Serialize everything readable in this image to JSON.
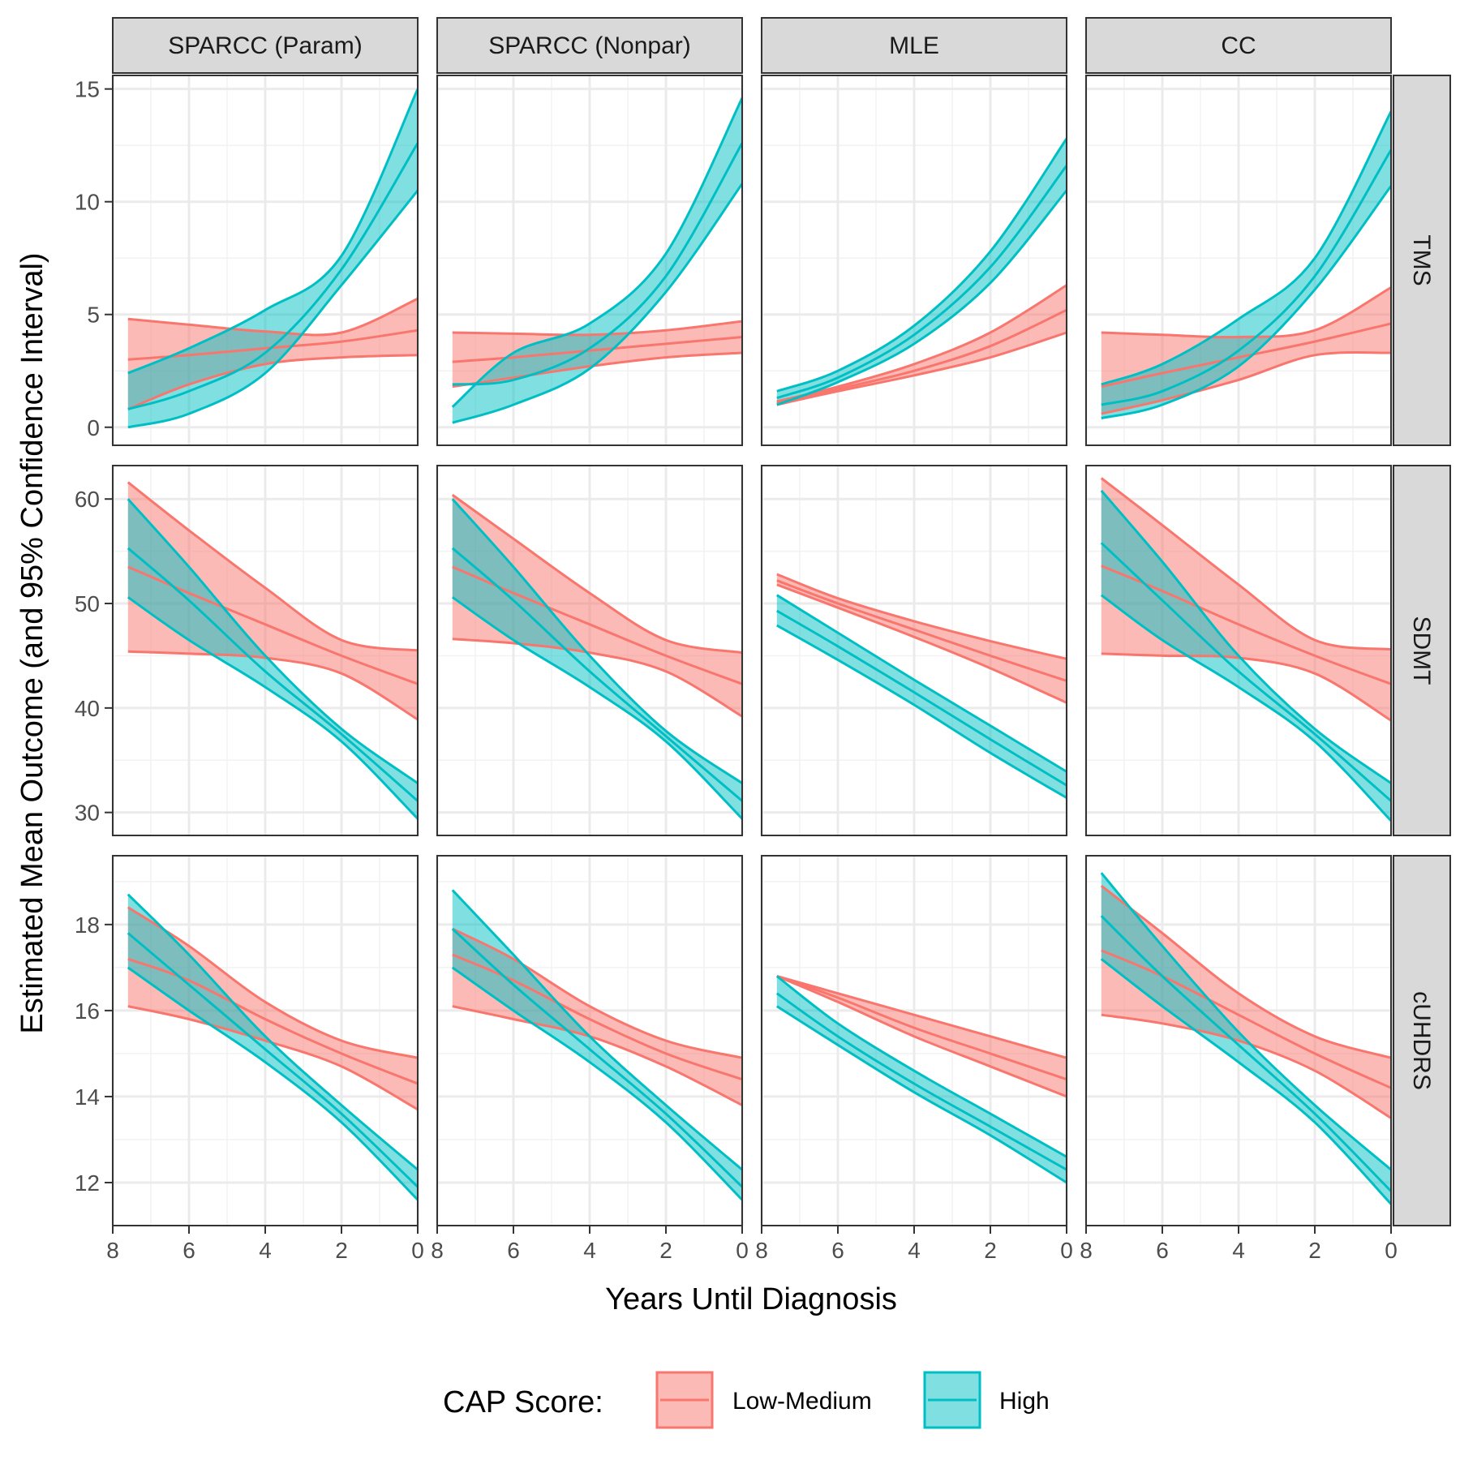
{
  "chart_data": {
    "type": "line",
    "xlabel": "Years Until Diagnosis",
    "ylabel": "Estimated Mean Outcome (and 95% Confidence Interval)",
    "x_reversed": true,
    "x_range": [
      8,
      0
    ],
    "x_ticks": [
      8,
      6,
      4,
      2,
      0
    ],
    "x_tick_labels": [
      "8",
      "6",
      "4",
      "2",
      "0"
    ],
    "x_data": [
      7.6,
      6,
      4,
      2,
      0
    ],
    "columns": [
      "SPARCC (Param)",
      "SPARCC (Nonpar)",
      "MLE",
      "CC"
    ],
    "rows": [
      {
        "name": "TMS",
        "ylim": [
          -0.8,
          15.6
        ],
        "y_ticks": [
          0,
          5,
          10,
          15
        ],
        "y_tick_labels": [
          "0",
          "5",
          "10",
          "15"
        ]
      },
      {
        "name": "SDMT",
        "ylim": [
          27.8,
          63.2
        ],
        "y_ticks": [
          30,
          40,
          50,
          60
        ],
        "y_tick_labels": [
          "30",
          "40",
          "50",
          "60"
        ]
      },
      {
        "name": "cUHDRS",
        "ylim": [
          11.0,
          19.6
        ],
        "y_ticks": [
          12,
          14,
          16,
          18
        ],
        "y_tick_labels": [
          "12",
          "14",
          "16",
          "18"
        ]
      }
    ],
    "legend": {
      "title": "CAP Score:",
      "position": "bottom",
      "entries": [
        {
          "label": "Low-Medium",
          "color": "#F8766D"
        },
        {
          "label": "High",
          "color": "#00BFC4"
        }
      ]
    },
    "panels": [
      {
        "row": "TMS",
        "col": "SPARCC (Param)",
        "series": [
          {
            "name": "Low-Medium",
            "fit": [
              3.0,
              3.2,
              3.5,
              3.8,
              4.3
            ],
            "lower": [
              0.8,
              1.9,
              2.8,
              3.1,
              3.2
            ],
            "upper": [
              4.8,
              4.55,
              4.25,
              4.2,
              5.7
            ]
          },
          {
            "name": "High",
            "fit": [
              0.8,
              1.6,
              3.3,
              7.0,
              12.6
            ],
            "lower": [
              0.0,
              0.6,
              2.4,
              6.3,
              10.5
            ],
            "upper": [
              2.4,
              3.5,
              5.2,
              7.6,
              15.0
            ]
          }
        ]
      },
      {
        "row": "TMS",
        "col": "SPARCC (Nonpar)",
        "series": [
          {
            "name": "Low-Medium",
            "fit": [
              2.9,
              3.1,
              3.4,
              3.7,
              4.0
            ],
            "lower": [
              1.8,
              2.2,
              2.7,
              3.1,
              3.3
            ],
            "upper": [
              4.2,
              4.15,
              4.1,
              4.3,
              4.7
            ]
          },
          {
            "name": "High",
            "fit": [
              1.9,
              2.1,
              3.5,
              6.7,
              12.6
            ],
            "lower": [
              0.2,
              1.0,
              2.6,
              6.0,
              10.8
            ],
            "upper": [
              0.9,
              3.3,
              4.6,
              7.7,
              14.6
            ]
          }
        ]
      },
      {
        "row": "TMS",
        "col": "MLE",
        "series": [
          {
            "name": "Low-Medium",
            "fit": [
              1.1,
              1.7,
              2.5,
              3.6,
              5.2
            ],
            "lower": [
              1.0,
              1.6,
              2.3,
              3.1,
              4.2
            ],
            "upper": [
              1.15,
              1.8,
              2.8,
              4.2,
              6.3
            ]
          },
          {
            "name": "High",
            "fit": [
              1.3,
              2.2,
              4.1,
              7.1,
              11.6
            ],
            "lower": [
              1.0,
              2.0,
              3.7,
              6.4,
              10.5
            ],
            "upper": [
              1.6,
              2.5,
              4.5,
              7.8,
              12.8
            ]
          }
        ]
      },
      {
        "row": "TMS",
        "col": "CC",
        "series": [
          {
            "name": "Low-Medium",
            "fit": [
              1.8,
              2.4,
              3.1,
              3.8,
              4.6
            ],
            "lower": [
              0.6,
              1.2,
              2.1,
              3.2,
              3.3
            ],
            "upper": [
              4.2,
              4.1,
              4.0,
              4.3,
              6.2
            ]
          },
          {
            "name": "High",
            "fit": [
              1.0,
              1.6,
              3.4,
              6.7,
              12.3
            ],
            "lower": [
              0.4,
              1.0,
              2.7,
              6.1,
              10.7
            ],
            "upper": [
              1.9,
              2.8,
              4.8,
              7.5,
              14.0
            ]
          }
        ]
      },
      {
        "row": "SDMT",
        "col": "SPARCC (Param)",
        "series": [
          {
            "name": "Low-Medium",
            "fit": [
              53.5,
              51.0,
              48.0,
              45.0,
              42.3
            ],
            "lower": [
              45.4,
              45.2,
              44.8,
              43.3,
              38.9
            ],
            "upper": [
              61.6,
              57.0,
              51.5,
              46.5,
              45.5
            ]
          },
          {
            "name": "High",
            "fit": [
              55.3,
              50.3,
              43.5,
              37.5,
              31.1
            ],
            "lower": [
              50.6,
              46.5,
              42.0,
              36.8,
              29.4
            ],
            "upper": [
              60.0,
              53.5,
              45.0,
              38.0,
              32.8
            ]
          }
        ]
      },
      {
        "row": "SDMT",
        "col": "SPARCC (Nonpar)",
        "series": [
          {
            "name": "Low-Medium",
            "fit": [
              53.5,
              51.0,
              48.0,
              45.0,
              42.3
            ],
            "lower": [
              46.6,
              46.2,
              45.3,
              43.5,
              39.2
            ],
            "upper": [
              60.4,
              56.2,
              51.0,
              46.5,
              45.3
            ]
          },
          {
            "name": "High",
            "fit": [
              55.3,
              50.3,
              43.5,
              37.3,
              31.1
            ],
            "lower": [
              50.6,
              46.5,
              42.0,
              36.8,
              29.4
            ],
            "upper": [
              60.0,
              53.5,
              45.0,
              37.8,
              32.8
            ]
          }
        ]
      },
      {
        "row": "SDMT",
        "col": "MLE",
        "series": [
          {
            "name": "Low-Medium",
            "fit": [
              52.2,
              50.0,
              47.5,
              45.0,
              42.6
            ],
            "lower": [
              51.8,
              49.6,
              46.8,
              43.8,
              40.5
            ],
            "upper": [
              52.8,
              50.5,
              48.3,
              46.4,
              44.7
            ]
          },
          {
            "name": "High",
            "fit": [
              49.3,
              45.9,
              41.5,
              37.0,
              32.6
            ],
            "lower": [
              47.9,
              44.6,
              40.3,
              35.7,
              31.4
            ],
            "upper": [
              50.8,
              47.2,
              42.7,
              38.3,
              33.9
            ]
          }
        ]
      },
      {
        "row": "SDMT",
        "col": "CC",
        "series": [
          {
            "name": "Low-Medium",
            "fit": [
              53.6,
              51.2,
              48.0,
              45.0,
              42.3
            ],
            "lower": [
              45.2,
              45.0,
              44.8,
              43.3,
              38.8
            ],
            "upper": [
              62.0,
              57.5,
              51.8,
              46.5,
              45.6
            ]
          },
          {
            "name": "High",
            "fit": [
              55.8,
              50.3,
              43.5,
              37.5,
              31.1
            ],
            "lower": [
              50.8,
              46.5,
              42.0,
              36.8,
              29.2
            ],
            "upper": [
              60.8,
              54.0,
              45.0,
              38.0,
              32.8
            ]
          }
        ]
      },
      {
        "row": "cUHDRS",
        "col": "SPARCC (Param)",
        "series": [
          {
            "name": "Low-Medium",
            "fit": [
              17.2,
              16.7,
              15.8,
              15.0,
              14.3
            ],
            "lower": [
              16.1,
              15.8,
              15.3,
              14.7,
              13.7
            ],
            "upper": [
              18.4,
              17.5,
              16.2,
              15.3,
              14.9
            ]
          },
          {
            "name": "High",
            "fit": [
              17.8,
              16.6,
              15.1,
              13.6,
              11.9
            ],
            "lower": [
              17.0,
              16.0,
              14.8,
              13.4,
              11.6
            ],
            "upper": [
              18.7,
              17.3,
              15.4,
              13.8,
              12.3
            ]
          }
        ]
      },
      {
        "row": "cUHDRS",
        "col": "SPARCC (Nonpar)",
        "series": [
          {
            "name": "Low-Medium",
            "fit": [
              17.3,
              16.7,
              15.8,
              15.0,
              14.4
            ],
            "lower": [
              16.1,
              15.8,
              15.4,
              14.7,
              13.8
            ],
            "upper": [
              17.9,
              17.2,
              16.1,
              15.3,
              14.9
            ]
          },
          {
            "name": "High",
            "fit": [
              17.9,
              16.6,
              15.1,
              13.6,
              11.9
            ],
            "lower": [
              17.0,
              16.0,
              14.8,
              13.4,
              11.6
            ],
            "upper": [
              18.8,
              17.3,
              15.4,
              13.8,
              12.3
            ]
          }
        ]
      },
      {
        "row": "cUHDRS",
        "col": "MLE",
        "series": [
          {
            "name": "Low-Medium",
            "fit": [
              16.8,
              16.3,
              15.6,
              15.0,
              14.4
            ],
            "lower": [
              16.8,
              16.2,
              15.4,
              14.7,
              14.0
            ],
            "upper": [
              16.8,
              16.4,
              15.9,
              15.4,
              14.9
            ]
          },
          {
            "name": "High",
            "fit": [
              16.4,
              15.4,
              14.3,
              13.3,
              12.3
            ],
            "lower": [
              16.1,
              15.2,
              14.1,
              13.1,
              12.0
            ],
            "upper": [
              16.8,
              15.7,
              14.6,
              13.6,
              12.6
            ]
          }
        ]
      },
      {
        "row": "cUHDRS",
        "col": "CC",
        "series": [
          {
            "name": "Low-Medium",
            "fit": [
              17.4,
              16.8,
              15.9,
              15.0,
              14.2
            ],
            "lower": [
              15.9,
              15.7,
              15.3,
              14.6,
              13.5
            ],
            "upper": [
              18.9,
              17.8,
              16.4,
              15.4,
              14.9
            ]
          },
          {
            "name": "High",
            "fit": [
              18.2,
              16.8,
              15.2,
              13.6,
              11.8
            ],
            "lower": [
              17.2,
              16.1,
              14.8,
              13.4,
              11.5
            ],
            "upper": [
              19.2,
              17.5,
              15.5,
              13.8,
              12.3
            ]
          }
        ]
      }
    ]
  }
}
